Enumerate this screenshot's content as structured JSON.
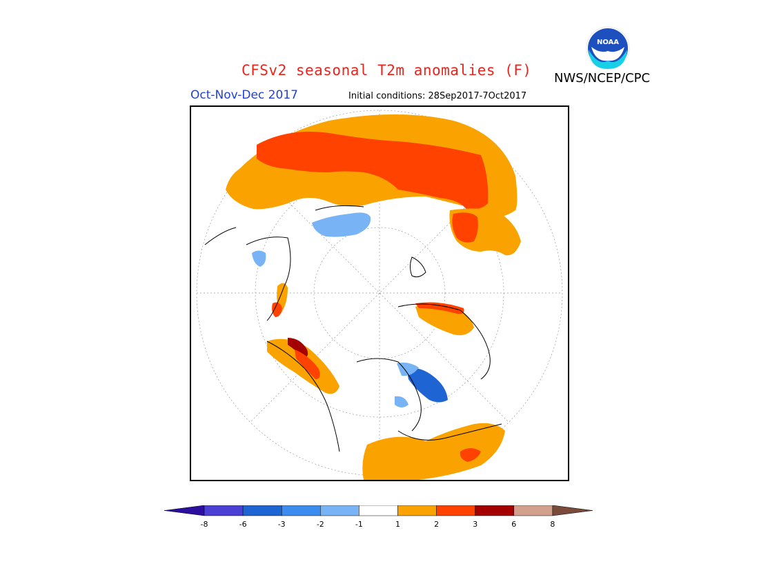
{
  "header": {
    "title": "CFSv2 seasonal T2m anomalies (F)",
    "agency": "NWS/NCEP/CPC",
    "season": "Oct-Nov-Dec 2017",
    "initial_conditions": "Initial conditions: 28Sep2017-7Oct2017",
    "logo_text": "NOAA"
  },
  "legend": {
    "bins": [
      {
        "color": "#2d0fa0"
      },
      {
        "color": "#4b3fd6"
      },
      {
        "color": "#1e64d2"
      },
      {
        "color": "#3c8cf0"
      },
      {
        "color": "#78b4f5"
      },
      {
        "color": "#ffffff"
      },
      {
        "color": "#f9a200"
      },
      {
        "color": "#ff4200"
      },
      {
        "color": "#a50000"
      },
      {
        "color": "#d2a08c"
      },
      {
        "color": "#7a4a3a"
      }
    ],
    "tick_labels": [
      "-8",
      "-6",
      "-3",
      "-2",
      "-1",
      "1",
      "2",
      "3",
      "6",
      "8"
    ]
  },
  "colors": {
    "orange": "#f9a200",
    "red": "#ff4200",
    "darkred": "#a50000",
    "lightblue": "#78b4f5",
    "blue": "#1e64d2",
    "title_red": "#e8261e",
    "season_blue": "#2040d8"
  }
}
